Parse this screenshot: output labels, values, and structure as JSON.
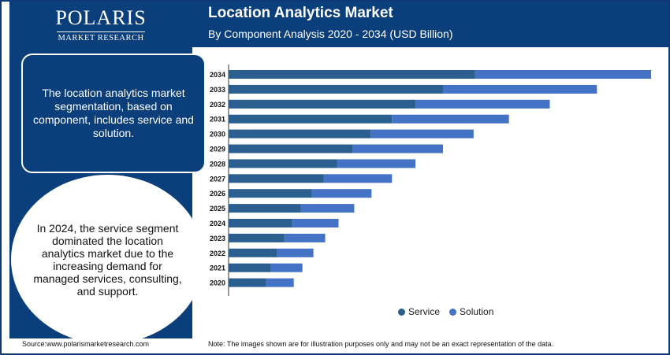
{
  "brand": {
    "name": "POLARIS",
    "tagline": "MARKET RESEARCH"
  },
  "header": {
    "title": "Location Analytics Market",
    "subtitle": "By Component Analysis 2020 - 2034 (USD Billion)"
  },
  "side": {
    "box1": "The location analytics market segmentation, based on component, includes service and solution.",
    "box2": "In 2024, the service segment dominated the location analytics market due to the increasing demand for managed services, consulting, and support."
  },
  "footer": {
    "source": "Source:www.polarismarketresearch.com",
    "note": "Note: The images shown are for illustration purposes only and may not be an exact representation of the data."
  },
  "chart_data": {
    "type": "bar",
    "orientation": "horizontal",
    "stacked": true,
    "categories": [
      "2034",
      "2033",
      "2032",
      "2031",
      "2030",
      "2029",
      "2028",
      "2027",
      "2026",
      "2025",
      "2024",
      "2023",
      "2022",
      "2021",
      "2020"
    ],
    "series": [
      {
        "name": "Service",
        "color": "#2a5f8f",
        "values": [
          31.4,
          27.3,
          23.8,
          20.8,
          18.1,
          15.8,
          13.8,
          12.1,
          10.6,
          9.2,
          8.1,
          7.1,
          6.2,
          5.4,
          4.8
        ]
      },
      {
        "name": "Solution",
        "color": "#4472c4",
        "values": [
          22.4,
          19.6,
          17.1,
          14.9,
          13.1,
          11.5,
          10.0,
          8.7,
          7.6,
          6.8,
          5.9,
          5.2,
          4.6,
          4.0,
          3.5
        ]
      }
    ],
    "xlim": [
      0,
      54
    ],
    "grid": false,
    "legend": "bottom"
  },
  "colors": {
    "navy": "#0b3f7c"
  }
}
